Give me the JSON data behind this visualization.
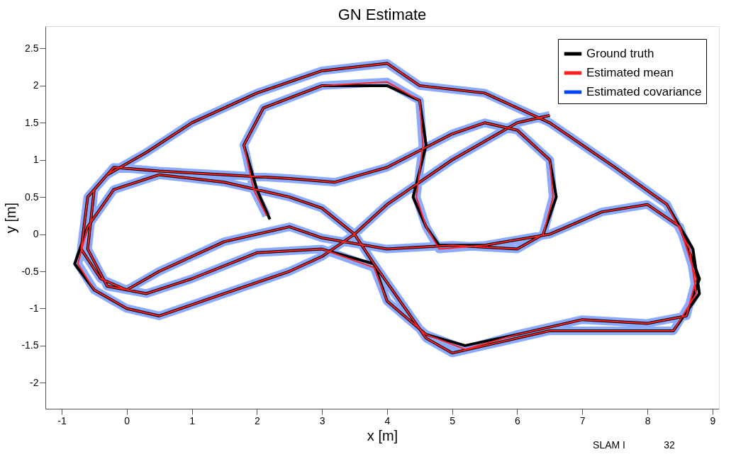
{
  "chart_data": {
    "type": "line",
    "title": "GN Estimate",
    "xlabel": "x [m]",
    "ylabel": "y [m]",
    "xlim": [
      -1.25,
      9.1
    ],
    "ylim": [
      -2.35,
      2.8
    ],
    "xticks": [
      -1,
      0,
      1,
      2,
      3,
      4,
      5,
      6,
      7,
      8,
      9
    ],
    "yticks": [
      -2,
      -1.5,
      -1,
      -0.5,
      0,
      0.5,
      1,
      1.5,
      2,
      2.5
    ],
    "grid": false,
    "legend": "top right",
    "line_style": "solid",
    "marker": "none",
    "annotations": [
      "SLAM I",
      "32"
    ],
    "series": [
      {
        "name": "Ground truth",
        "color": "#000000",
        "x": [
          2.2,
          2.0,
          1.8,
          2.1,
          3.0,
          4.0,
          4.5,
          4.6,
          4.4,
          4.6,
          4.8,
          5.5,
          6.5,
          7.3,
          8.0,
          8.5,
          8.8,
          8.6,
          8.0,
          7.0,
          6.0,
          5.2,
          4.6,
          4.0,
          3.8,
          3.0,
          2.0,
          1.0,
          0.3,
          -0.3,
          -0.6,
          -0.5,
          -0.2,
          0.5,
          1.5,
          2.5,
          3.2,
          4.0,
          5.0,
          5.5,
          6.0,
          6.5,
          6.6,
          6.4,
          6.0,
          5.0,
          4.0,
          3.0,
          2.5,
          1.5,
          0.5,
          0.0,
          -0.4,
          -0.7,
          -0.6,
          -0.3,
          0.3,
          1.0,
          2.0,
          3.0,
          4.0,
          4.5,
          5.5,
          6.5,
          7.5,
          8.3,
          8.7,
          8.8,
          8.4,
          7.5,
          6.5,
          5.5,
          5.0,
          4.6,
          3.8,
          3.5,
          3.0,
          2.5,
          1.5,
          0.5,
          -0.2,
          -0.6,
          -0.8,
          -0.5,
          0.0,
          0.5,
          1.5,
          2.5,
          3.0,
          3.5,
          4.0,
          5.0,
          6.0,
          6.5
        ],
        "values": [
          0.2,
          0.6,
          1.2,
          1.7,
          2.0,
          2.0,
          1.8,
          1.2,
          0.5,
          0.1,
          -0.15,
          -0.15,
          0.0,
          0.3,
          0.4,
          0.1,
          -0.6,
          -1.1,
          -1.2,
          -1.15,
          -1.35,
          -1.5,
          -1.35,
          -0.9,
          -0.4,
          -0.2,
          -0.25,
          -0.6,
          -0.8,
          -0.7,
          -0.2,
          0.6,
          0.9,
          0.85,
          0.8,
          0.75,
          0.7,
          0.9,
          1.35,
          1.5,
          1.4,
          1.0,
          0.5,
          0.0,
          -0.2,
          -0.15,
          -0.2,
          -0.05,
          0.1,
          -0.1,
          -0.5,
          -0.75,
          -0.6,
          -0.2,
          0.5,
          0.8,
          1.1,
          1.5,
          1.9,
          2.2,
          2.3,
          2.0,
          1.9,
          1.5,
          0.9,
          0.4,
          -0.2,
          -0.8,
          -1.3,
          -1.3,
          -1.3,
          -1.5,
          -1.6,
          -1.4,
          -0.4,
          0.0,
          0.35,
          0.5,
          0.7,
          0.8,
          0.6,
          0.1,
          -0.4,
          -0.75,
          -1.0,
          -1.1,
          -0.8,
          -0.5,
          -0.3,
          0.0,
          0.4,
          1.0,
          1.5,
          1.6
        ]
      },
      {
        "name": "Estimated mean",
        "color": "#ff2020",
        "x": [
          2.15,
          1.95,
          1.8,
          2.1,
          3.0,
          4.0,
          4.5,
          4.55,
          4.45,
          4.6,
          4.8,
          5.5,
          6.5,
          7.3,
          8.0,
          8.5,
          8.75,
          8.6,
          8.0,
          7.0,
          6.0,
          5.2,
          4.6,
          4.0,
          3.8,
          3.0,
          2.0,
          1.0,
          0.3,
          -0.3,
          -0.6,
          -0.5,
          -0.2,
          0.5,
          1.5,
          2.5,
          3.2,
          4.0,
          5.0,
          5.5,
          6.0,
          6.5,
          6.55,
          6.4,
          6.0,
          5.0,
          4.0,
          3.0,
          2.5,
          1.5,
          0.5,
          0.0,
          -0.4,
          -0.7,
          -0.6,
          -0.3,
          0.3,
          1.0,
          2.0,
          3.0,
          4.0,
          4.5,
          5.5,
          6.5,
          7.5,
          8.3,
          8.65,
          8.75,
          8.4,
          7.5,
          6.5,
          5.5,
          5.0,
          4.6,
          3.8,
          3.5,
          3.0,
          2.5,
          1.5,
          0.5,
          -0.2,
          -0.6,
          -0.75,
          -0.5,
          0.0,
          0.5,
          1.5,
          2.5,
          3.0,
          3.5,
          4.0,
          5.0,
          6.0,
          6.5
        ],
        "values": [
          0.25,
          0.6,
          1.2,
          1.7,
          2.0,
          2.05,
          1.8,
          1.2,
          0.5,
          0.1,
          -0.2,
          -0.15,
          0.0,
          0.3,
          0.4,
          0.1,
          -0.6,
          -1.1,
          -1.2,
          -1.15,
          -1.35,
          -1.55,
          -1.35,
          -0.9,
          -0.45,
          -0.2,
          -0.25,
          -0.6,
          -0.8,
          -0.7,
          -0.2,
          0.6,
          0.9,
          0.85,
          0.8,
          0.75,
          0.7,
          0.9,
          1.35,
          1.5,
          1.4,
          1.0,
          0.5,
          0.0,
          -0.2,
          -0.15,
          -0.2,
          -0.05,
          0.1,
          -0.1,
          -0.5,
          -0.75,
          -0.6,
          -0.2,
          0.5,
          0.8,
          1.1,
          1.5,
          1.9,
          2.2,
          2.3,
          2.0,
          1.9,
          1.5,
          0.9,
          0.4,
          -0.2,
          -0.8,
          -1.3,
          -1.3,
          -1.3,
          -1.5,
          -1.6,
          -1.4,
          -0.4,
          0.0,
          0.35,
          0.5,
          0.7,
          0.8,
          0.6,
          0.1,
          -0.4,
          -0.75,
          -1.0,
          -1.1,
          -0.8,
          -0.5,
          -0.3,
          0.0,
          0.4,
          1.0,
          1.5,
          1.6
        ]
      },
      {
        "name": "Estimated covariance",
        "color": "#0044ff",
        "x": [
          2.15,
          1.95,
          1.8,
          2.1,
          3.0,
          4.0,
          4.5,
          4.55,
          4.45,
          4.6,
          4.8,
          5.5,
          6.5,
          7.3,
          8.0,
          8.5,
          8.75,
          8.6,
          8.0,
          7.0,
          6.0,
          5.2,
          4.6,
          4.0,
          3.8,
          3.0,
          2.0,
          1.0,
          0.3,
          -0.3,
          -0.6,
          -0.5,
          -0.2,
          0.5,
          1.5,
          2.5,
          3.2,
          4.0,
          5.0,
          5.5,
          6.0,
          6.5,
          6.55,
          6.4,
          6.0,
          5.0,
          4.0,
          3.0,
          2.5,
          1.5,
          0.5,
          0.0,
          -0.4,
          -0.7,
          -0.6,
          -0.3,
          0.3,
          1.0,
          2.0,
          3.0,
          4.0,
          4.5,
          5.5,
          6.5,
          7.5,
          8.3,
          8.65,
          8.75,
          8.4,
          7.5,
          6.5,
          5.5,
          5.0,
          4.6,
          3.8,
          3.5,
          3.0,
          2.5,
          1.5,
          0.5,
          -0.2,
          -0.6,
          -0.75,
          -0.5,
          0.0,
          0.5,
          1.5,
          2.5,
          3.0,
          3.5,
          4.0,
          5.0,
          6.0,
          6.5
        ],
        "values": [
          0.25,
          0.6,
          1.2,
          1.7,
          2.0,
          2.05,
          1.8,
          1.2,
          0.5,
          0.1,
          -0.2,
          -0.15,
          0.0,
          0.3,
          0.4,
          0.1,
          -0.6,
          -1.1,
          -1.2,
          -1.15,
          -1.35,
          -1.55,
          -1.35,
          -0.9,
          -0.45,
          -0.2,
          -0.25,
          -0.6,
          -0.8,
          -0.7,
          -0.2,
          0.6,
          0.9,
          0.85,
          0.8,
          0.75,
          0.7,
          0.9,
          1.35,
          1.5,
          1.4,
          1.0,
          0.5,
          0.0,
          -0.2,
          -0.15,
          -0.2,
          -0.05,
          0.1,
          -0.1,
          -0.5,
          -0.75,
          -0.6,
          -0.2,
          0.5,
          0.8,
          1.1,
          1.5,
          1.9,
          2.2,
          2.3,
          2.0,
          1.9,
          1.5,
          0.9,
          0.4,
          -0.2,
          -0.8,
          -1.3,
          -1.3,
          -1.3,
          -1.5,
          -1.6,
          -1.4,
          -0.4,
          0.0,
          0.35,
          0.5,
          0.7,
          0.8,
          0.6,
          0.1,
          -0.4,
          -0.75,
          -1.0,
          -1.1,
          -0.8,
          -0.5,
          -0.3,
          0.0,
          0.4,
          1.0,
          1.5,
          1.6
        ]
      }
    ]
  }
}
